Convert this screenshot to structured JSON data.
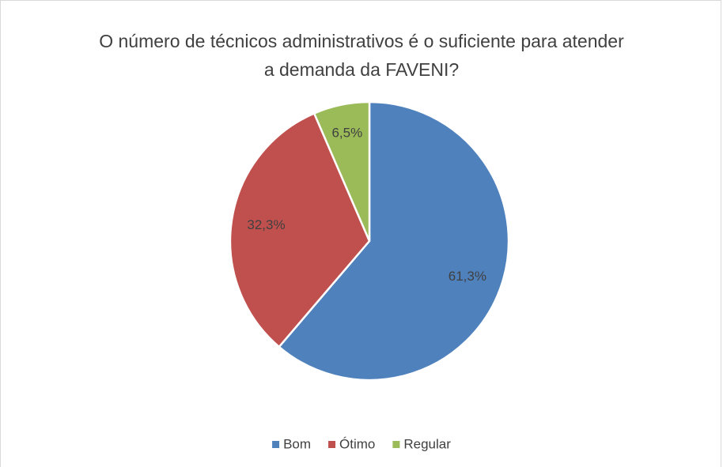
{
  "chart_data": {
    "type": "pie",
    "title": "O número de técnicos administrativos é o suficiente para atender a demanda da FAVENI?",
    "categories": [
      "Bom",
      "Ótimo",
      "Regular"
    ],
    "values": [
      61.3,
      32.3,
      6.5
    ],
    "value_labels": [
      "61,3%",
      "32,3%",
      "6,5%"
    ],
    "colors": [
      "#4f81bd",
      "#c0504d",
      "#9bbb59"
    ],
    "legend": "bottom"
  }
}
